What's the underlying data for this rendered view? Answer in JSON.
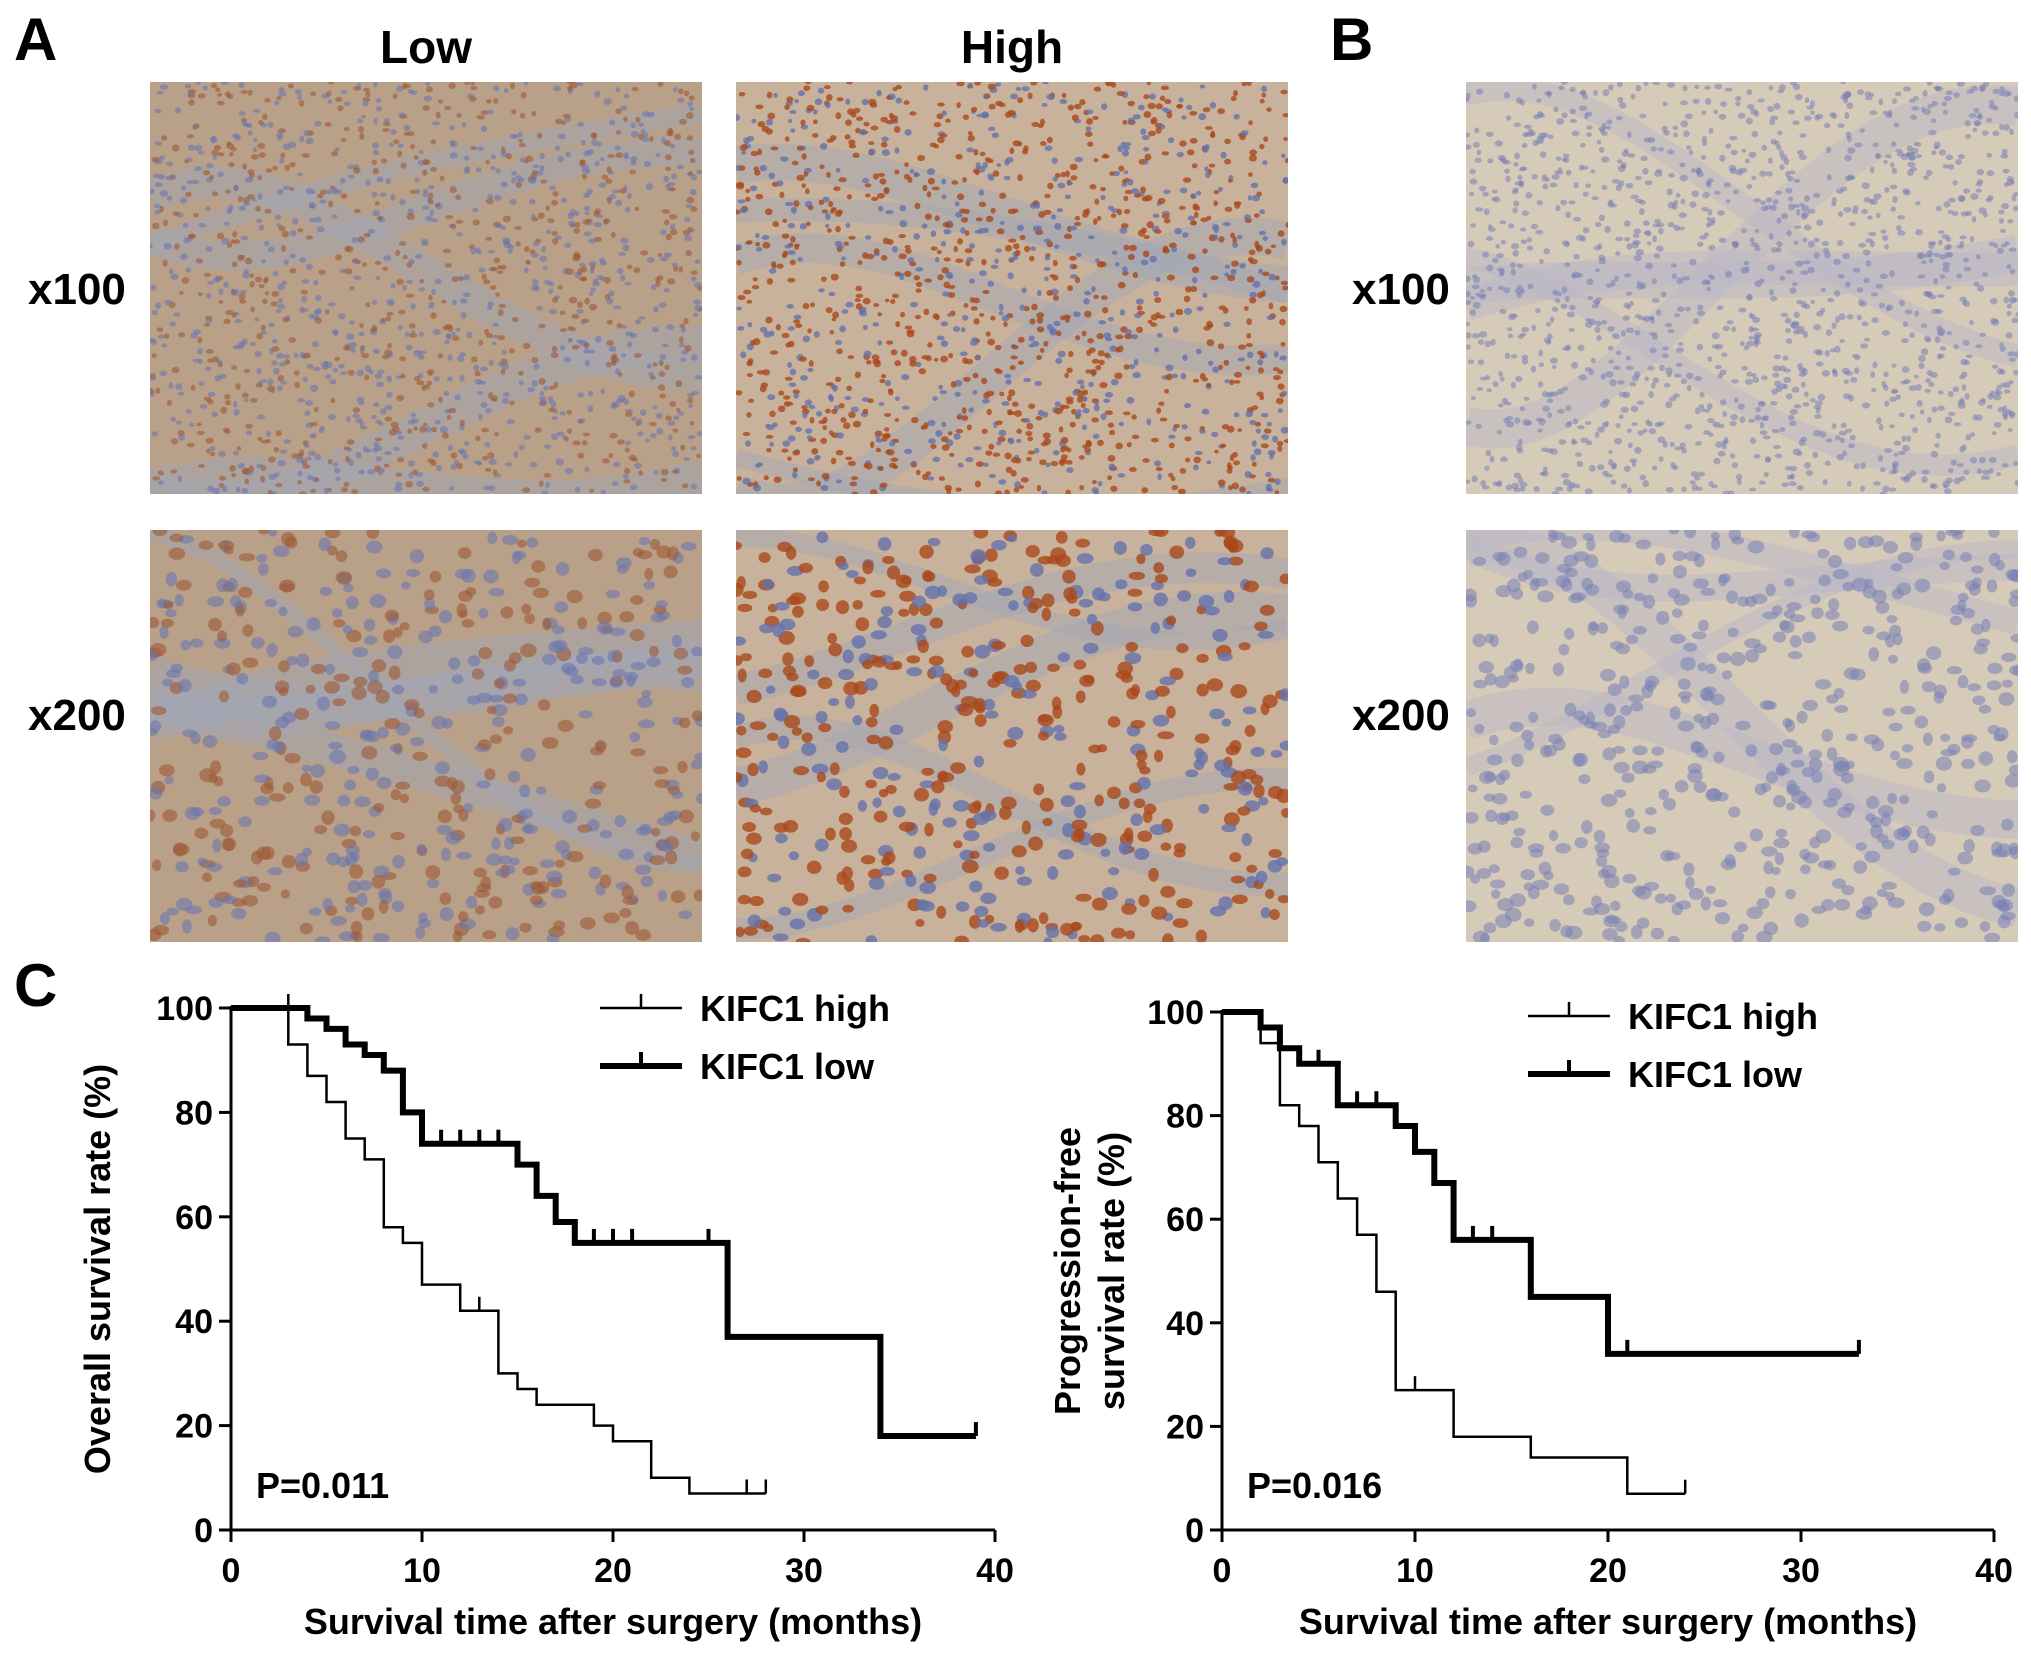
{
  "panel_A": {
    "letter": "A",
    "columns": [
      "Low",
      "High"
    ],
    "rows": [
      "x100",
      "x200"
    ]
  },
  "panel_B": {
    "letter": "B",
    "rows": [
      "x100",
      "x200"
    ]
  },
  "panel_C": {
    "letter": "C"
  },
  "colors": {
    "stain_brown": "#b5642f",
    "hematoxylin_blue": "#5b6aa8",
    "tissue_low_bg": "#b9a089",
    "tissue_high_bg": "#c9b29c",
    "tissue_neg_bg": "#d6cab8"
  },
  "chart_data": [
    {
      "type": "line",
      "step": true,
      "xlabel": "Survival time after surgery (months)",
      "ylabel": "Overall survival  rate (%)",
      "xlim": [
        0,
        40
      ],
      "ylim": [
        0,
        100
      ],
      "xticks": [
        0,
        10,
        20,
        30,
        40
      ],
      "yticks": [
        0,
        20,
        40,
        60,
        80,
        100
      ],
      "grid": false,
      "legend_position": "top-right",
      "annotation": "P=0.011",
      "series": [
        {
          "name": "KIFC1 high",
          "style": "thin",
          "x": [
            0,
            3,
            4,
            5,
            6,
            7,
            8,
            9,
            10,
            12,
            14,
            15,
            16,
            17,
            19,
            20,
            22,
            24,
            28
          ],
          "y": [
            100,
            93,
            87,
            82,
            75,
            71,
            58,
            55,
            47,
            42,
            30,
            27,
            24,
            24,
            20,
            17,
            10,
            7,
            7
          ],
          "censored": [
            [
              3,
              100
            ],
            [
              13,
              42
            ],
            [
              27,
              7
            ],
            [
              28,
              7
            ]
          ]
        },
        {
          "name": "KIFC1 low",
          "style": "thick",
          "x": [
            0,
            4,
            5,
            6,
            7,
            8,
            9,
            10,
            15,
            16,
            17,
            18,
            26,
            34,
            39
          ],
          "y": [
            100,
            98,
            96,
            93,
            91,
            88,
            80,
            74,
            70,
            64,
            59,
            55,
            37,
            18,
            18
          ],
          "censored": [
            [
              11,
              74
            ],
            [
              12,
              74
            ],
            [
              13,
              74
            ],
            [
              14,
              74
            ],
            [
              19,
              55
            ],
            [
              20,
              55
            ],
            [
              21,
              55
            ],
            [
              25,
              55
            ],
            [
              39,
              18
            ]
          ]
        }
      ]
    },
    {
      "type": "line",
      "step": true,
      "xlabel": "Survival time after surgery (months)",
      "ylabel_lines": [
        "Progression-free",
        "survival rate (%)"
      ],
      "xlim": [
        0,
        40
      ],
      "ylim": [
        0,
        100
      ],
      "xticks": [
        0,
        10,
        20,
        30,
        40
      ],
      "yticks": [
        0,
        20,
        40,
        60,
        80,
        100
      ],
      "grid": false,
      "legend_position": "top-right",
      "annotation": "P=0.016",
      "series": [
        {
          "name": "KIFC1 high",
          "style": "thin",
          "x": [
            0,
            2,
            3,
            4,
            5,
            6,
            7,
            8,
            9,
            12,
            16,
            21,
            24
          ],
          "y": [
            100,
            94,
            82,
            78,
            71,
            64,
            57,
            46,
            27,
            18,
            14,
            7,
            7
          ],
          "censored": [
            [
              10,
              27
            ],
            [
              24,
              7
            ]
          ]
        },
        {
          "name": "KIFC1 low",
          "style": "thick",
          "x": [
            0,
            2,
            3,
            4,
            6,
            9,
            10,
            11,
            12,
            16,
            20,
            33
          ],
          "y": [
            100,
            97,
            93,
            90,
            82,
            78,
            73,
            67,
            56,
            45,
            34,
            34
          ],
          "censored": [
            [
              5,
              90
            ],
            [
              7,
              82
            ],
            [
              8,
              82
            ],
            [
              13,
              56
            ],
            [
              14,
              56
            ],
            [
              21,
              34
            ],
            [
              33,
              34
            ]
          ]
        }
      ]
    }
  ]
}
